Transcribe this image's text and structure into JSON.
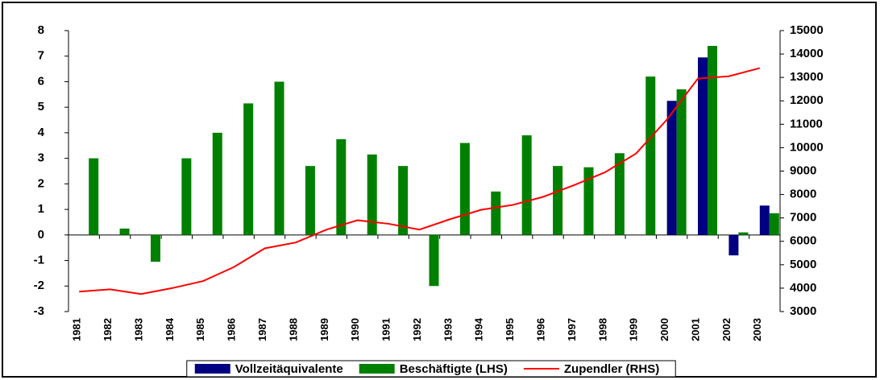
{
  "chart_data": {
    "type": "bar",
    "categories": [
      "1981",
      "1982",
      "1983",
      "1984",
      "1985",
      "1986",
      "1987",
      "1988",
      "1989",
      "1990",
      "1991",
      "1992",
      "1993",
      "1994",
      "1995",
      "1996",
      "1997",
      "1998",
      "1999",
      "2000",
      "2001",
      "2002",
      "2003"
    ],
    "series": [
      {
        "name": "Vollzeitäquivalente",
        "color": "#000080",
        "type": "bar",
        "values": [
          null,
          null,
          null,
          null,
          null,
          null,
          null,
          null,
          null,
          null,
          null,
          null,
          null,
          null,
          null,
          null,
          null,
          null,
          null,
          5.25,
          6.95,
          -0.8,
          1.15
        ]
      },
      {
        "name": "Beschäftigte (LHS)",
        "color": "#008000",
        "type": "bar",
        "values": [
          3.0,
          0.25,
          -1.05,
          3.0,
          4.0,
          5.15,
          6.0,
          2.7,
          3.75,
          3.15,
          2.7,
          -2.0,
          3.6,
          1.7,
          3.9,
          2.7,
          2.65,
          3.2,
          6.2,
          5.7,
          7.4,
          0.1,
          0.85
        ]
      },
      {
        "name": "Zupendler (RHS)",
        "color": "#ff0000",
        "type": "line",
        "axis": "y2",
        "values": [
          3850,
          3950,
          3750,
          4000,
          4300,
          4900,
          5700,
          5950,
          6500,
          6900,
          6750,
          6500,
          6950,
          7350,
          7550,
          7900,
          8400,
          8950,
          9750,
          11200,
          12950,
          13050,
          13400
        ]
      }
    ],
    "ylim": [
      -3,
      8
    ],
    "yticks": [
      -3,
      -2,
      -1,
      0,
      1,
      2,
      3,
      4,
      5,
      6,
      7,
      8
    ],
    "y2lim": [
      3000,
      15000
    ],
    "y2ticks": [
      3000,
      4000,
      5000,
      6000,
      7000,
      8000,
      9000,
      10000,
      11000,
      12000,
      13000,
      14000,
      15000
    ],
    "grid": false,
    "legend": "bottom"
  }
}
